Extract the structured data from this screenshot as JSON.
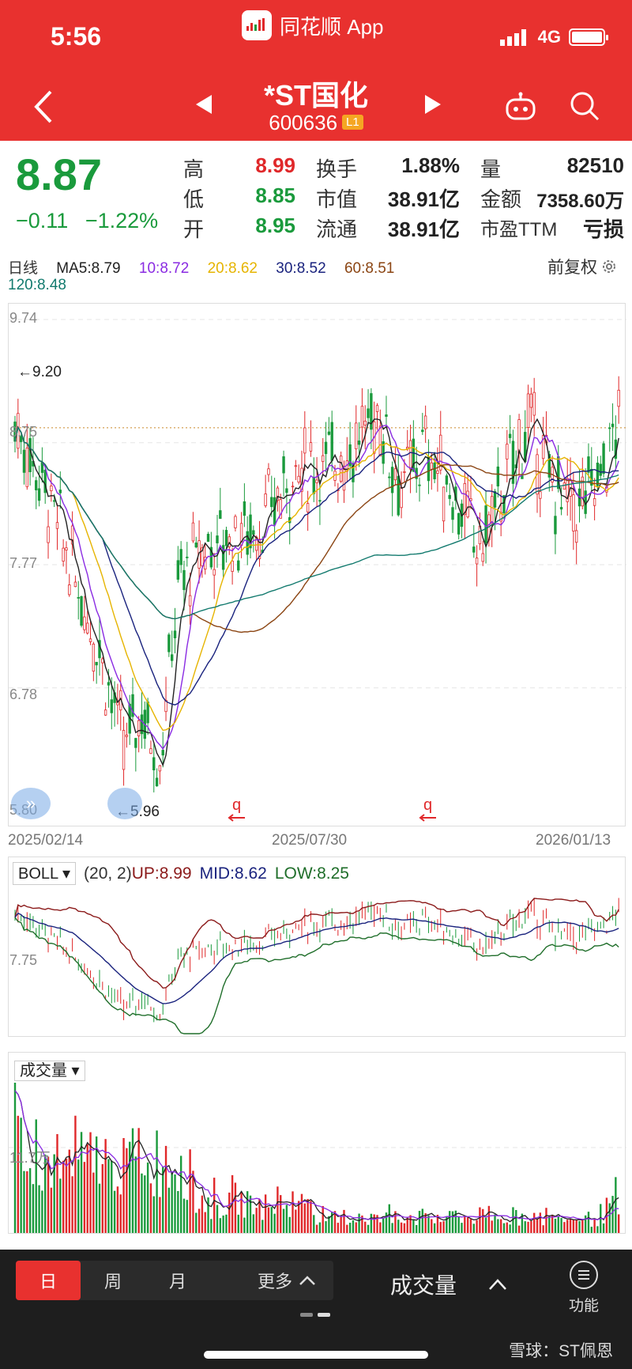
{
  "status_bar": {
    "time": "5:56",
    "network": "4G",
    "app_name": "同花顺 App"
  },
  "stock": {
    "name": "*ST国化",
    "code": "600636",
    "level": "L1"
  },
  "quote": {
    "price": "8.87",
    "change": "−0.11",
    "change_pct": "−1.22%",
    "rows": [
      {
        "l1": "高",
        "v1": "8.99",
        "l2": "换手",
        "v2": "1.88%",
        "l3": "量",
        "v3": "82510"
      },
      {
        "l1": "低",
        "v1": "8.85",
        "l2": "市值",
        "v2": "38.91亿",
        "l3": "金额",
        "v3": "7358.60万"
      },
      {
        "l1": "开",
        "v1": "8.95",
        "l2": "流通",
        "v2": "38.91亿",
        "l3": "市盈TTM",
        "v3": "亏损"
      }
    ]
  },
  "ma_legend": {
    "period": "日线",
    "ma5": "MA5:8.79",
    "ma10": "10:8.72",
    "ma20": "20:8.62",
    "ma30": "30:8.52",
    "ma60": "60:8.51",
    "ma120": "120:8.48",
    "adjust": "前复权"
  },
  "colors": {
    "red": "#e0282a",
    "green": "#1a9a3c",
    "ma5": "#222222",
    "ma10": "#8a2be2",
    "ma20": "#e6b400",
    "ma30": "#1a237e",
    "ma60": "#8b4513",
    "ma120": "#127a6e"
  },
  "main_chart": {
    "price_ticks": [
      "9.74",
      "8.75",
      "7.77",
      "6.78",
      "5.80"
    ],
    "high_marker": "←9.20",
    "low_marker": "←5.96",
    "dates": [
      "2025/02/14",
      "2025/07/30",
      "2026/01/13"
    ]
  },
  "boll": {
    "name": "BOLL",
    "params": "(20, 2)",
    "up": "UP:8.99",
    "mid": "MID:8.62",
    "low": "LOW:8.25",
    "tick": "7.75"
  },
  "volume": {
    "name": "成交量",
    "tick": "11.7万"
  },
  "toolbar": {
    "tabs": [
      "日",
      "周",
      "月"
    ],
    "more": "更多",
    "indicator": "成交量",
    "func": "功能"
  },
  "watermark": "雪球：ST佩恩"
}
